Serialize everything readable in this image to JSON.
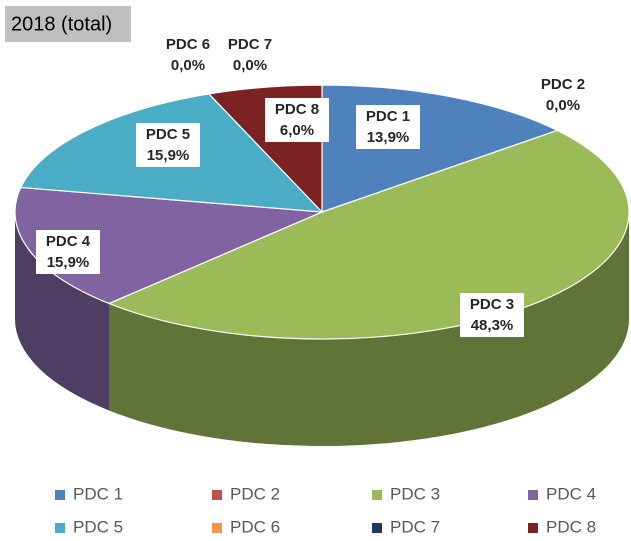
{
  "chart_data": {
    "type": "pie3d",
    "title": "2018 (total)",
    "categories": [
      "PDC 1",
      "PDC 2",
      "PDC 3",
      "PDC 4",
      "PDC 5",
      "PDC 6",
      "PDC 7",
      "PDC 8"
    ],
    "values": [
      13.9,
      0.0,
      48.3,
      15.9,
      15.9,
      0.0,
      0.0,
      6.0
    ],
    "value_labels": [
      "13,9%",
      "0,0%",
      "48,3%",
      "15,9%",
      "15,9%",
      "0,0%",
      "0,0%",
      "6,0%"
    ],
    "colors": [
      "#4f81bd",
      "#c0504d",
      "#9bbb59",
      "#8064a2",
      "#4bacc6",
      "#f79646",
      "#1f3864",
      "#7b2323"
    ],
    "legend": "bottom"
  }
}
